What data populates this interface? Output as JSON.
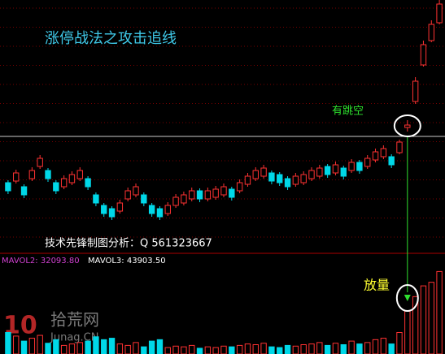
{
  "chart_data": {
    "type": "candlestick",
    "title": "涨停战法之攻击追线",
    "annotations": {
      "gap": "有跳空",
      "author": "技术先锋制图分析：Q 561323667",
      "volume": "放量"
    },
    "volume_legend": [
      "MAVOL2: 32093.80",
      "MAVOL3: 43903.50"
    ],
    "watermark": [
      "10",
      "拾荒网",
      "Junag.CN"
    ],
    "up_color": "#ff3232",
    "down_color": "#00d8e8",
    "ylim": [
      0,
      300
    ],
    "vlim": [
      0,
      120000
    ],
    "reference_line": 132,
    "grid": true,
    "candles": [
      [
        75,
        78,
        61,
        65
      ],
      [
        77,
        91,
        74,
        87
      ],
      [
        70,
        73,
        56,
        60
      ],
      [
        80,
        94,
        77,
        90
      ],
      [
        95,
        109,
        92,
        105
      ],
      [
        90,
        93,
        76,
        80
      ],
      [
        75,
        78,
        61,
        65
      ],
      [
        70,
        84,
        67,
        80
      ],
      [
        75,
        89,
        72,
        85
      ],
      [
        80,
        94,
        77,
        90
      ],
      [
        80,
        83,
        66,
        70
      ],
      [
        60,
        63,
        46,
        50
      ],
      [
        47,
        50,
        33,
        37
      ],
      [
        43,
        46,
        29,
        33
      ],
      [
        40,
        54,
        37,
        50
      ],
      [
        55,
        69,
        52,
        65
      ],
      [
        60,
        74,
        57,
        70
      ],
      [
        60,
        63,
        46,
        50
      ],
      [
        47,
        50,
        33,
        37
      ],
      [
        43,
        46,
        29,
        33
      ],
      [
        37,
        51,
        34,
        47
      ],
      [
        47,
        61,
        44,
        57
      ],
      [
        50,
        64,
        47,
        60
      ],
      [
        55,
        69,
        52,
        65
      ],
      [
        65,
        68,
        51,
        55
      ],
      [
        55,
        69,
        52,
        65
      ],
      [
        57,
        71,
        54,
        67
      ],
      [
        60,
        74,
        57,
        70
      ],
      [
        67,
        70,
        53,
        57
      ],
      [
        65,
        79,
        62,
        75
      ],
      [
        73,
        87,
        70,
        83
      ],
      [
        80,
        94,
        77,
        90
      ],
      [
        83,
        97,
        80,
        93
      ],
      [
        87,
        90,
        73,
        77
      ],
      [
        85,
        88,
        71,
        75
      ],
      [
        80,
        83,
        66,
        70
      ],
      [
        73,
        87,
        70,
        83
      ],
      [
        75,
        89,
        72,
        85
      ],
      [
        80,
        94,
        77,
        90
      ],
      [
        83,
        97,
        80,
        93
      ],
      [
        95,
        98,
        81,
        85
      ],
      [
        87,
        101,
        84,
        97
      ],
      [
        93,
        96,
        79,
        83
      ],
      [
        90,
        104,
        87,
        100
      ],
      [
        100,
        103,
        86,
        90
      ],
      [
        95,
        109,
        92,
        105
      ],
      [
        103,
        117,
        100,
        113
      ],
      [
        107,
        121,
        104,
        117
      ],
      [
        107,
        110,
        93,
        97
      ],
      [
        112,
        128,
        110,
        125
      ],
      [
        143,
        152,
        138,
        146
      ],
      [
        175,
        205,
        172,
        200
      ],
      [
        220,
        250,
        218,
        245
      ],
      [
        250,
        275,
        248,
        270
      ],
      [
        272,
        300,
        270,
        295
      ]
    ],
    "volumes": [
      30000,
      25000,
      18000,
      22000,
      26000,
      15000,
      20000,
      12000,
      14000,
      16000,
      18000,
      24000,
      20000,
      22000,
      14000,
      12000,
      16000,
      10000,
      18000,
      20000,
      9000,
      11000,
      10000,
      12000,
      8000,
      10000,
      9000,
      11000,
      10000,
      12000,
      14000,
      13000,
      15000,
      10000,
      9000,
      12000,
      11000,
      13000,
      14000,
      16000,
      12000,
      15000,
      13000,
      18000,
      14000,
      16000,
      20000,
      22000,
      14000,
      30000,
      60000,
      80000,
      95000,
      100000,
      115000
    ]
  }
}
